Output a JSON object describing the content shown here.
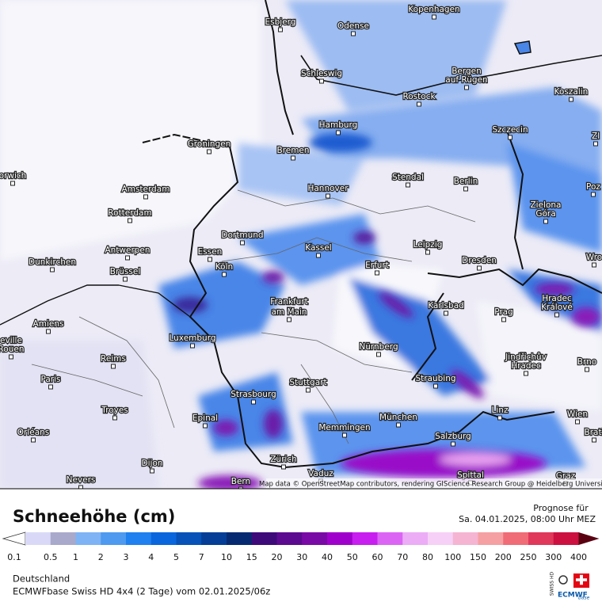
{
  "map": {
    "cities": [
      "Kopenhagen",
      "Esbjerg",
      "Odense",
      "Schleswig",
      "Bergen",
      "auf Rügen",
      "Rostock",
      "Koszalin",
      "Hamburg",
      "Szczecin",
      "Zl",
      "Bremen",
      "Groningen",
      "orwich",
      "Amsterdam",
      "Hannover",
      "Stendal",
      "Berlin",
      "Poz",
      "Rotterdam",
      "Zielona",
      "Góra",
      "Dortmund",
      "Leipzig",
      "Essen",
      "Kassel",
      "Antwerpen",
      "Dunkirchen",
      "Köln",
      "Erfurt",
      "Dresden",
      "Wro",
      "Brüssel",
      "Frankfurt",
      "am Main",
      "Karlsbad",
      "Hradec",
      "Králové",
      "Prag",
      "Amiens",
      "Luxemburg",
      "eville",
      "Rouen",
      "Nürnberg",
      "Jindřichův",
      "Hradec",
      "Brno",
      "Reims",
      "Paris",
      "Straubing",
      "Stuttgart",
      "Strasbourg",
      "Troyes",
      "Epinal",
      "München",
      "Linz",
      "Wien",
      "Memmingen",
      "Orléans",
      "Salzburg",
      "Brati",
      "Zürich",
      "Dijon",
      "Vaduz",
      "Bern",
      "Nevers",
      "Spittal",
      "Graz"
    ],
    "attribution": "Map data © OpenStreetMap contributors, rendering GIScience Research Group @ Heidelberg University"
  },
  "legend": {
    "title": "Schneehöhe (cm)",
    "forecast_label": "Prognose für",
    "forecast_date": "Sa. 04.01.2025, 08:00 Uhr MEZ",
    "ticks": [
      "0.1",
      "0.5",
      "1",
      "2",
      "3",
      "4",
      "5",
      "7",
      "10",
      "15",
      "20",
      "30",
      "40",
      "50",
      "60",
      "70",
      "80",
      "100",
      "150",
      "200",
      "250",
      "300",
      "400"
    ]
  },
  "footer": {
    "region": "Deutschland",
    "model": "ECMWFbase Swiss HD 4x4 (2 Tage) vom 02.01.2025/06z",
    "logo_top": "SWISS HD",
    "logo_bottom": "ECMWF",
    "logo_sub": "base"
  }
}
